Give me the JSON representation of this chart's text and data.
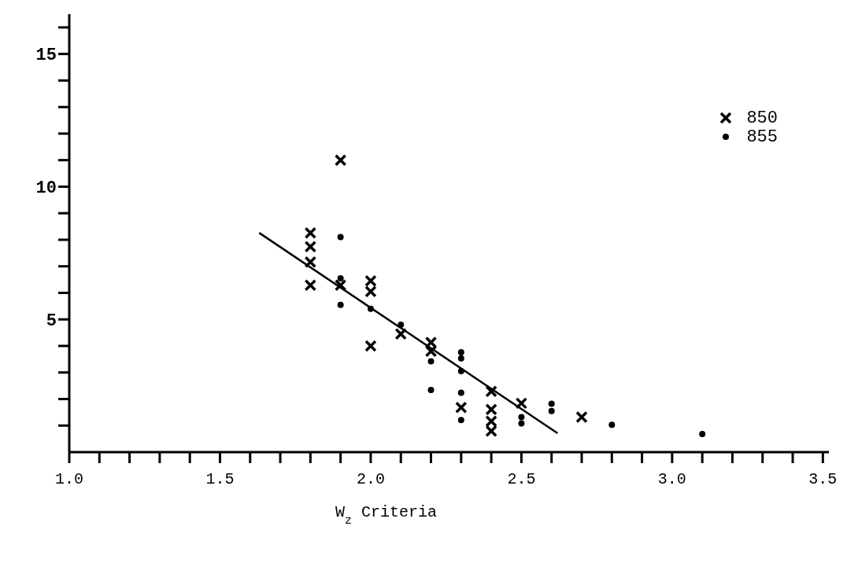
{
  "chart_data": {
    "type": "scatter",
    "xlabel": "W$_{z}$ Criteria",
    "xlim": [
      1.0,
      3.52
    ],
    "ylim": [
      0,
      16.5
    ],
    "xticks": [
      {
        "value": 1.0,
        "label": "1.0"
      },
      {
        "value": 1.1,
        "label": null
      },
      {
        "value": 1.2,
        "label": null
      },
      {
        "value": 1.3,
        "label": null
      },
      {
        "value": 1.4,
        "label": null
      },
      {
        "value": 1.5,
        "label": "1.5"
      },
      {
        "value": 1.6,
        "label": null
      },
      {
        "value": 1.7,
        "label": null
      },
      {
        "value": 1.8,
        "label": null
      },
      {
        "value": 1.9,
        "label": null
      },
      {
        "value": 2.0,
        "label": "2.0"
      },
      {
        "value": 2.1,
        "label": null
      },
      {
        "value": 2.2,
        "label": null
      },
      {
        "value": 2.3,
        "label": null
      },
      {
        "value": 2.4,
        "label": null
      },
      {
        "value": 2.5,
        "label": "2.5"
      },
      {
        "value": 2.6,
        "label": null
      },
      {
        "value": 2.7,
        "label": null
      },
      {
        "value": 2.8,
        "label": null
      },
      {
        "value": 2.9,
        "label": null
      },
      {
        "value": 3.0,
        "label": "3.0"
      },
      {
        "value": 3.1,
        "label": null
      },
      {
        "value": 3.2,
        "label": null
      },
      {
        "value": 3.3,
        "label": null
      },
      {
        "value": 3.4,
        "label": null
      },
      {
        "value": 3.5,
        "label": "3.5"
      }
    ],
    "yticks": [
      {
        "value": 1,
        "label": null
      },
      {
        "value": 2,
        "label": null
      },
      {
        "value": 3,
        "label": null
      },
      {
        "value": 4,
        "label": null
      },
      5,
      {
        "value": 6,
        "label": null
      },
      {
        "value": 7,
        "label": null
      },
      {
        "value": 8,
        "label": null
      },
      {
        "value": 9,
        "label": null
      },
      10,
      {
        "value": 11,
        "label": null
      },
      {
        "value": 12,
        "label": null
      },
      {
        "value": 13,
        "label": null
      },
      {
        "value": 14,
        "label": null
      },
      15,
      {
        "value": 16,
        "label": null
      }
    ],
    "grid": false,
    "legend": "top right",
    "series": [
      {
        "name": "850",
        "color": "#000000",
        "marker": "cross",
        "x": [
          1.9,
          1.8,
          1.8,
          1.8,
          1.8,
          1.9,
          2.0,
          2.0,
          2.0,
          2.1,
          2.2,
          2.2,
          2.3,
          2.4,
          2.4,
          2.4,
          2.4,
          2.5,
          2.7
        ],
        "values": [
          11.0,
          8.26,
          7.74,
          7.16,
          6.29,
          6.29,
          6.45,
          6.05,
          4.0,
          4.45,
          4.13,
          3.8,
          1.68,
          2.29,
          1.61,
          1.16,
          0.79,
          1.84,
          1.32
        ]
      },
      {
        "name": "855",
        "color": "#000000",
        "marker": "circle",
        "x": [
          1.9,
          1.9,
          1.9,
          2.0,
          2.1,
          2.2,
          2.2,
          2.3,
          2.3,
          2.3,
          2.3,
          2.3,
          2.5,
          2.5,
          2.6,
          2.6,
          2.8,
          3.1
        ],
        "values": [
          8.1,
          6.55,
          5.55,
          5.4,
          4.8,
          3.42,
          2.34,
          3.76,
          3.53,
          3.05,
          2.24,
          1.21,
          1.32,
          1.08,
          1.82,
          1.55,
          1.03,
          0.68
        ]
      },
      {
        "type": "line",
        "color": "#000000",
        "marker": "none",
        "x": [
          1.63,
          2.62
        ],
        "values": [
          8.26,
          0.71
        ]
      }
    ]
  }
}
